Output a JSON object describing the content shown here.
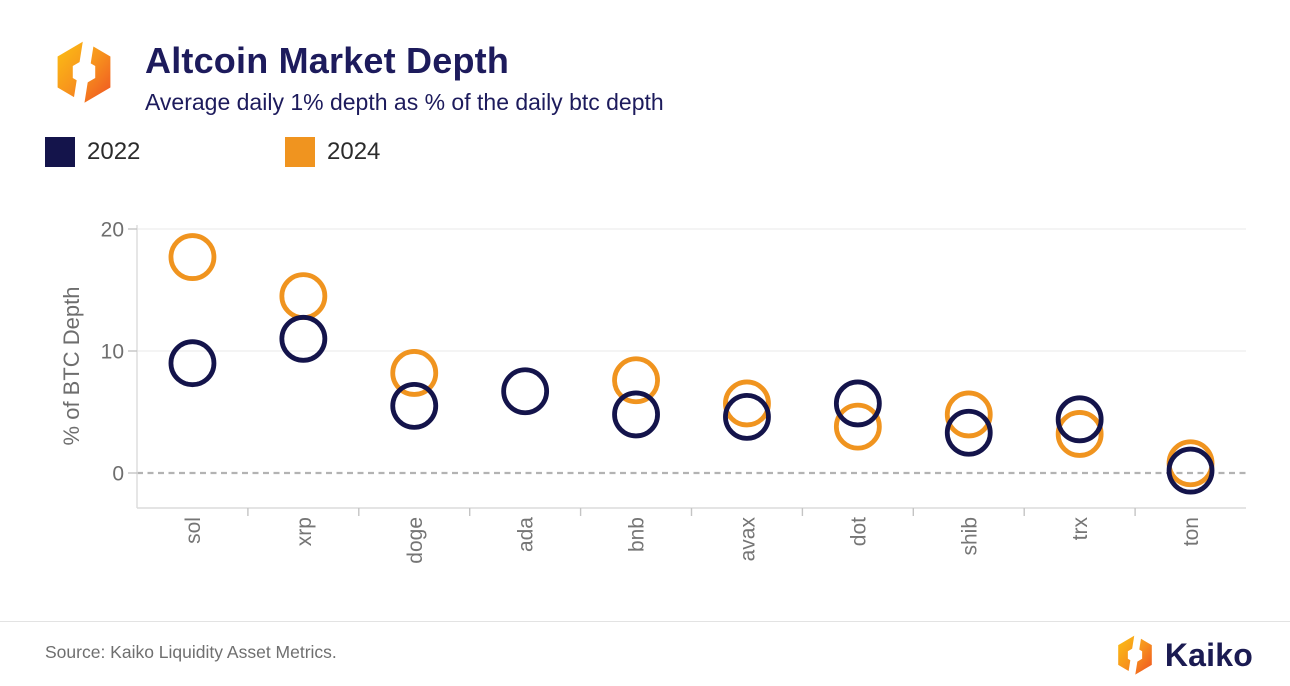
{
  "header": {
    "title": "Altcoin Market Depth",
    "subtitle": "Average daily 1% depth as % of the daily btc depth"
  },
  "chart_data": {
    "type": "scatter",
    "marker": "open-circle",
    "title": "Altcoin Market Depth",
    "subtitle": "Average daily 1% depth as % of the daily btc depth",
    "ylabel": "% of BTC Depth",
    "xlabel": "",
    "categories": [
      "sol",
      "xrp",
      "doge",
      "ada",
      "bnb",
      "avax",
      "dot",
      "shib",
      "trx",
      "ton"
    ],
    "series": [
      {
        "name": "2022",
        "color": "#14144b",
        "values": [
          9.0,
          11.0,
          5.5,
          6.7,
          4.8,
          4.6,
          5.7,
          3.3,
          4.4,
          0.2
        ]
      },
      {
        "name": "2024",
        "color": "#f0941f",
        "values": [
          17.7,
          14.5,
          8.2,
          null,
          7.6,
          5.7,
          3.8,
          4.8,
          3.2,
          0.8
        ]
      }
    ],
    "yticks": [
      0,
      10,
      20
    ],
    "ylim": [
      -2.9,
      20.3
    ],
    "grid": "horizontal",
    "zero_line": "dashed",
    "legend_position": "top-left"
  },
  "footer": {
    "source": "Source: Kaiko Liquidity Asset Metrics.",
    "brand": "Kaiko"
  }
}
